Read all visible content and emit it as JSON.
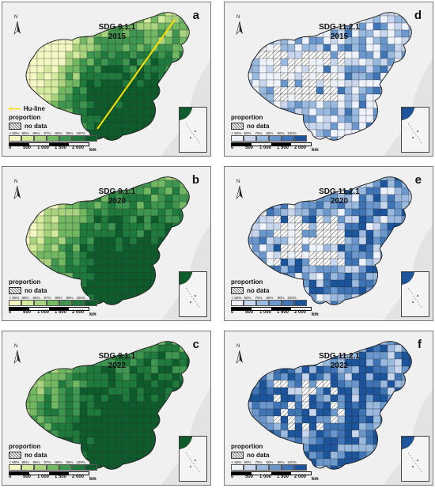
{
  "panels": [
    {
      "id": "a",
      "indicator": "SDG 9.1.1",
      "year": "2015",
      "scheme": "green",
      "level": 0.35,
      "huline": true
    },
    {
      "id": "d",
      "indicator": "SDG 11.2.1",
      "year": "2015",
      "scheme": "blue",
      "level": 0.3,
      "huline": false
    },
    {
      "id": "b",
      "indicator": "SDG 9.1.1",
      "year": "2020",
      "scheme": "green",
      "level": 0.6,
      "huline": false
    },
    {
      "id": "e",
      "indicator": "SDG 11.2.1",
      "year": "2020",
      "scheme": "blue",
      "level": 0.55,
      "huline": false
    },
    {
      "id": "c",
      "indicator": "SDG 9.1.1",
      "year": "2022",
      "scheme": "green",
      "level": 0.85,
      "huline": false
    },
    {
      "id": "f",
      "indicator": "SDG 11.2.1",
      "year": "2022",
      "scheme": "blue",
      "level": 0.75,
      "huline": false
    }
  ],
  "legend": {
    "title": "proportion",
    "nodata": "no data",
    "huline_label": "Hu-line",
    "green_ticks": [
      "< 90%",
      "95%",
      "96%",
      "97%",
      "98%",
      "99%",
      "100%"
    ],
    "blue_ticks": [
      "< 50%",
      "60%",
      "70%",
      "80%",
      "90%",
      "100%"
    ],
    "green_colors": [
      "#f5f7c2",
      "#d4ea9c",
      "#a9d37e",
      "#72b863",
      "#3f9650",
      "#1f7a3d",
      "#0e5c2c"
    ],
    "blue_colors": [
      "#eef2fa",
      "#c9d7ee",
      "#9ab9de",
      "#6b98cc",
      "#3f74b5",
      "#1c559b"
    ],
    "north_label": "N"
  },
  "scale": {
    "ticks": [
      "0",
      "500",
      "1 000",
      "1 500",
      "2 000"
    ],
    "unit": "km"
  }
}
